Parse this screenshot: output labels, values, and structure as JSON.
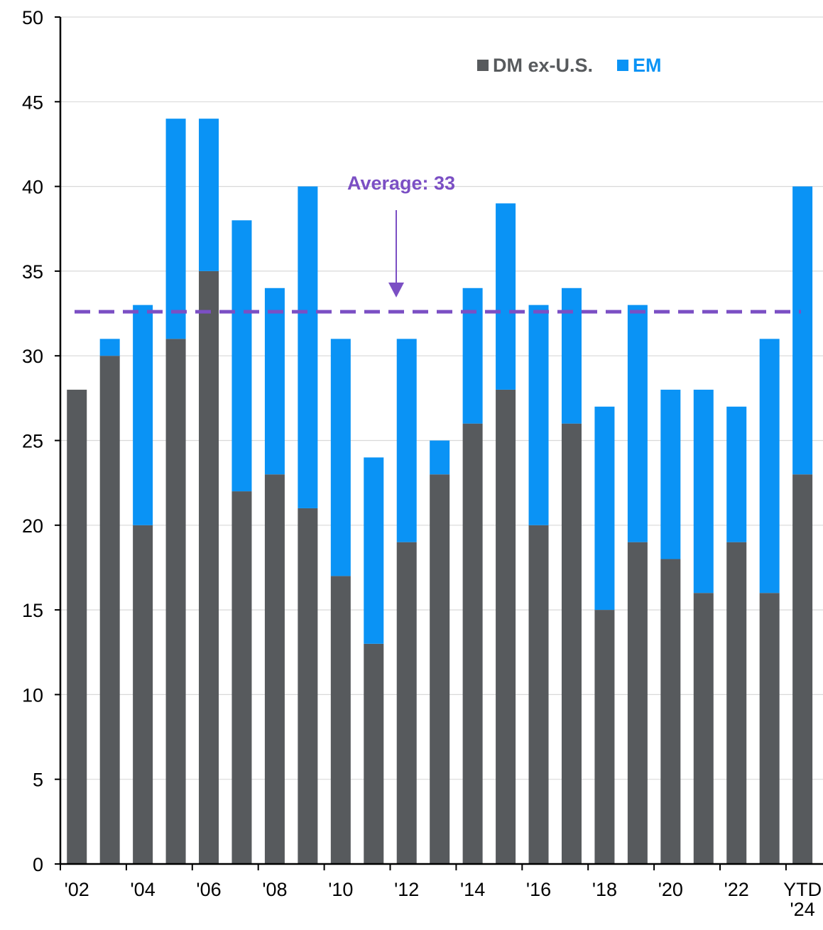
{
  "chart_data": {
    "type": "bar",
    "stacked": true,
    "categories": [
      "'02",
      null,
      "'04",
      null,
      "'06",
      null,
      "'08",
      null,
      "'10",
      null,
      "'12",
      null,
      "'14",
      null,
      "'16",
      null,
      "'18",
      null,
      "'20",
      null,
      "'22",
      null,
      "YTD '24"
    ],
    "series": [
      {
        "name": "DM ex-U.S.",
        "color": "#575a5d",
        "values": [
          28,
          30,
          20,
          31,
          35,
          22,
          23,
          21,
          17,
          13,
          19,
          23,
          26,
          28,
          20,
          26,
          15,
          19,
          18,
          16,
          19,
          16,
          23
        ]
      },
      {
        "name": "EM",
        "color": "#0a93f5",
        "values": [
          0,
          1,
          13,
          13,
          9,
          16,
          11,
          19,
          14,
          11,
          12,
          2,
          8,
          11,
          13,
          8,
          12,
          14,
          10,
          12,
          8,
          15,
          17
        ]
      }
    ],
    "ylim": [
      0,
      50
    ],
    "yticks": [
      0,
      5,
      10,
      15,
      20,
      25,
      30,
      35,
      40,
      45,
      50
    ],
    "grid": true,
    "legend": "top-right",
    "average": {
      "value": 32.6,
      "label": "Average: 33",
      "color": "#7b4fc4"
    }
  }
}
